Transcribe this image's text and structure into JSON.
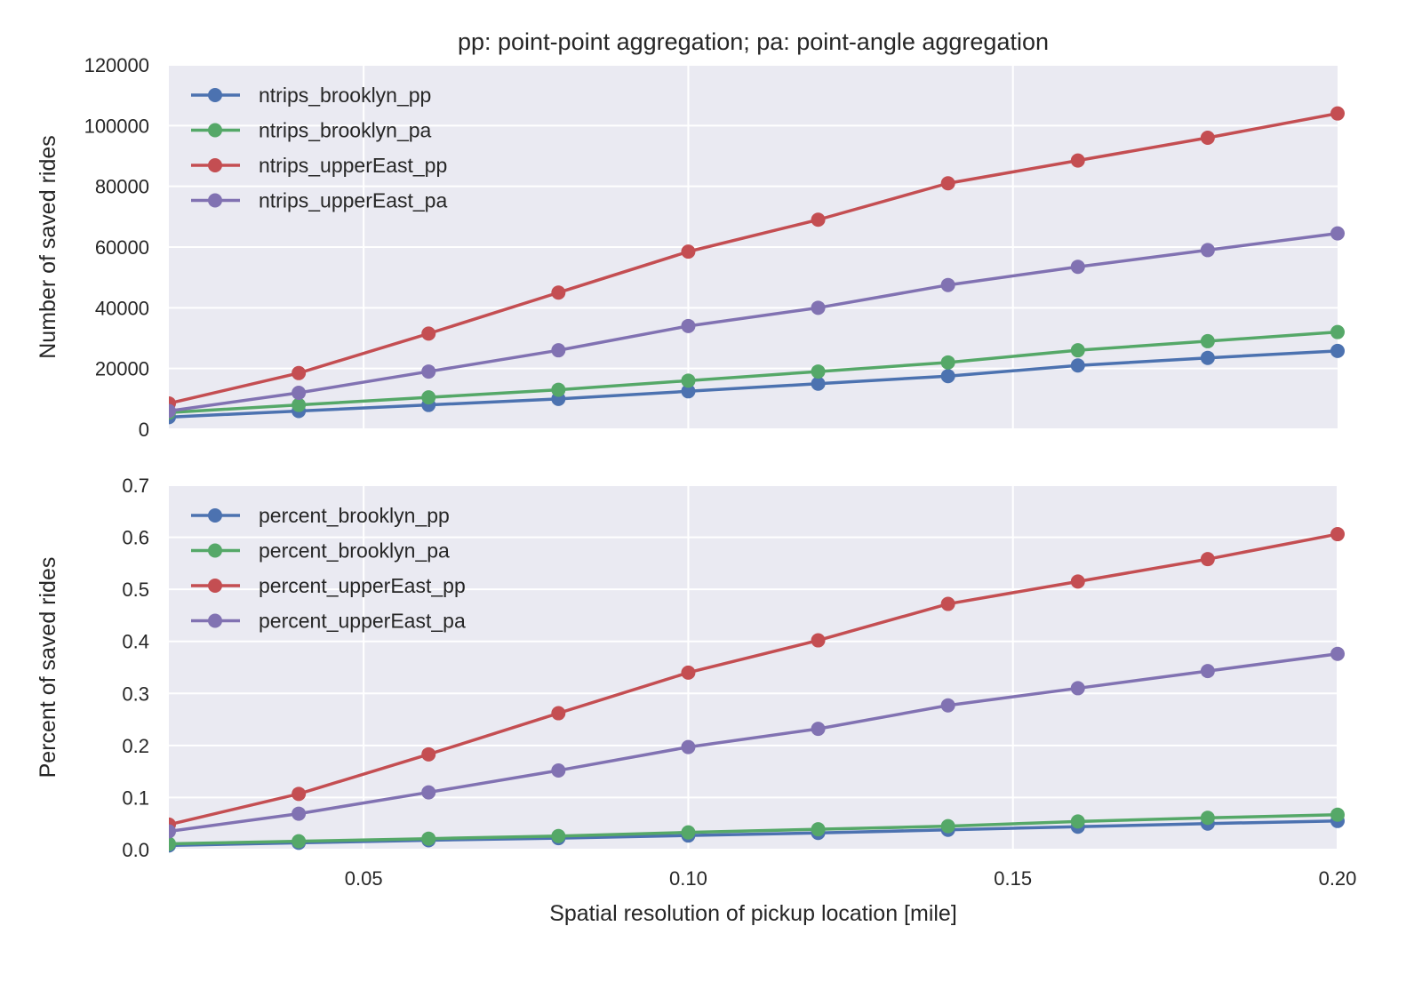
{
  "chart_data": [
    {
      "type": "line",
      "title": "pp: point-point aggregation;   pa: point-angle aggregation",
      "xlabel": "",
      "ylabel": "Number of saved rides",
      "xlim": [
        0.02,
        0.2
      ],
      "ylim": [
        0,
        120000
      ],
      "x_ticks": [
        0.05,
        0.1,
        0.15
      ],
      "y_ticks": [
        0,
        20000,
        40000,
        60000,
        80000,
        100000,
        120000
      ],
      "y_tick_labels": [
        "0",
        "20000",
        "40000",
        "60000",
        "80000",
        "100000",
        "120000"
      ],
      "grid": true,
      "legend_position": "top-left",
      "x": [
        0.02,
        0.04,
        0.06,
        0.08,
        0.1,
        0.12,
        0.14,
        0.16,
        0.18,
        0.2
      ],
      "series": [
        {
          "name": "ntrips_brooklyn_pp",
          "color": "#4c72b0",
          "values": [
            4000,
            6000,
            8000,
            10000,
            12500,
            15000,
            17500,
            21000,
            23500,
            25800
          ]
        },
        {
          "name": "ntrips_brooklyn_pa",
          "color": "#55a868",
          "values": [
            5500,
            8000,
            10500,
            13000,
            16000,
            19000,
            22000,
            26000,
            29000,
            32000
          ]
        },
        {
          "name": "ntrips_upperEast_pp",
          "color": "#c44e52",
          "values": [
            8500,
            18500,
            31500,
            45000,
            58500,
            69000,
            81000,
            88500,
            96000,
            104000
          ]
        },
        {
          "name": "ntrips_upperEast_pa",
          "color": "#8172b2",
          "values": [
            6000,
            12000,
            19000,
            26000,
            34000,
            40000,
            47500,
            53500,
            59000,
            64500
          ]
        }
      ]
    },
    {
      "type": "line",
      "title": "",
      "xlabel": "Spatial resolution of pickup location [mile]",
      "ylabel": "Percent of saved rides",
      "xlim": [
        0.02,
        0.2
      ],
      "ylim": [
        0,
        0.7
      ],
      "x_ticks": [
        0.05,
        0.1,
        0.15,
        0.2
      ],
      "x_tick_labels": [
        "0.05",
        "0.10",
        "0.15",
        "0.20"
      ],
      "y_ticks": [
        0,
        0.1,
        0.2,
        0.3,
        0.4,
        0.5,
        0.6,
        0.7
      ],
      "y_tick_labels": [
        "0.0",
        "0.1",
        "0.2",
        "0.3",
        "0.4",
        "0.5",
        "0.6",
        "0.7"
      ],
      "grid": true,
      "legend_position": "top-left",
      "x": [
        0.02,
        0.04,
        0.06,
        0.08,
        0.1,
        0.12,
        0.14,
        0.16,
        0.18,
        0.2
      ],
      "series": [
        {
          "name": "percent_brooklyn_pp",
          "color": "#4c72b0",
          "values": [
            0.008,
            0.013,
            0.018,
            0.022,
            0.027,
            0.032,
            0.038,
            0.044,
            0.05,
            0.055
          ]
        },
        {
          "name": "percent_brooklyn_pa",
          "color": "#55a868",
          "values": [
            0.011,
            0.016,
            0.021,
            0.026,
            0.033,
            0.039,
            0.045,
            0.054,
            0.061,
            0.067
          ]
        },
        {
          "name": "percent_upperEast_pp",
          "color": "#c44e52",
          "values": [
            0.048,
            0.107,
            0.183,
            0.262,
            0.34,
            0.402,
            0.472,
            0.515,
            0.558,
            0.606
          ]
        },
        {
          "name": "percent_upperEast_pa",
          "color": "#8172b2",
          "values": [
            0.035,
            0.069,
            0.11,
            0.152,
            0.197,
            0.232,
            0.277,
            0.31,
            0.343,
            0.376
          ]
        }
      ]
    }
  ],
  "style": {
    "plot_background": "#eaeaf2",
    "grid_color": "#ffffff"
  }
}
